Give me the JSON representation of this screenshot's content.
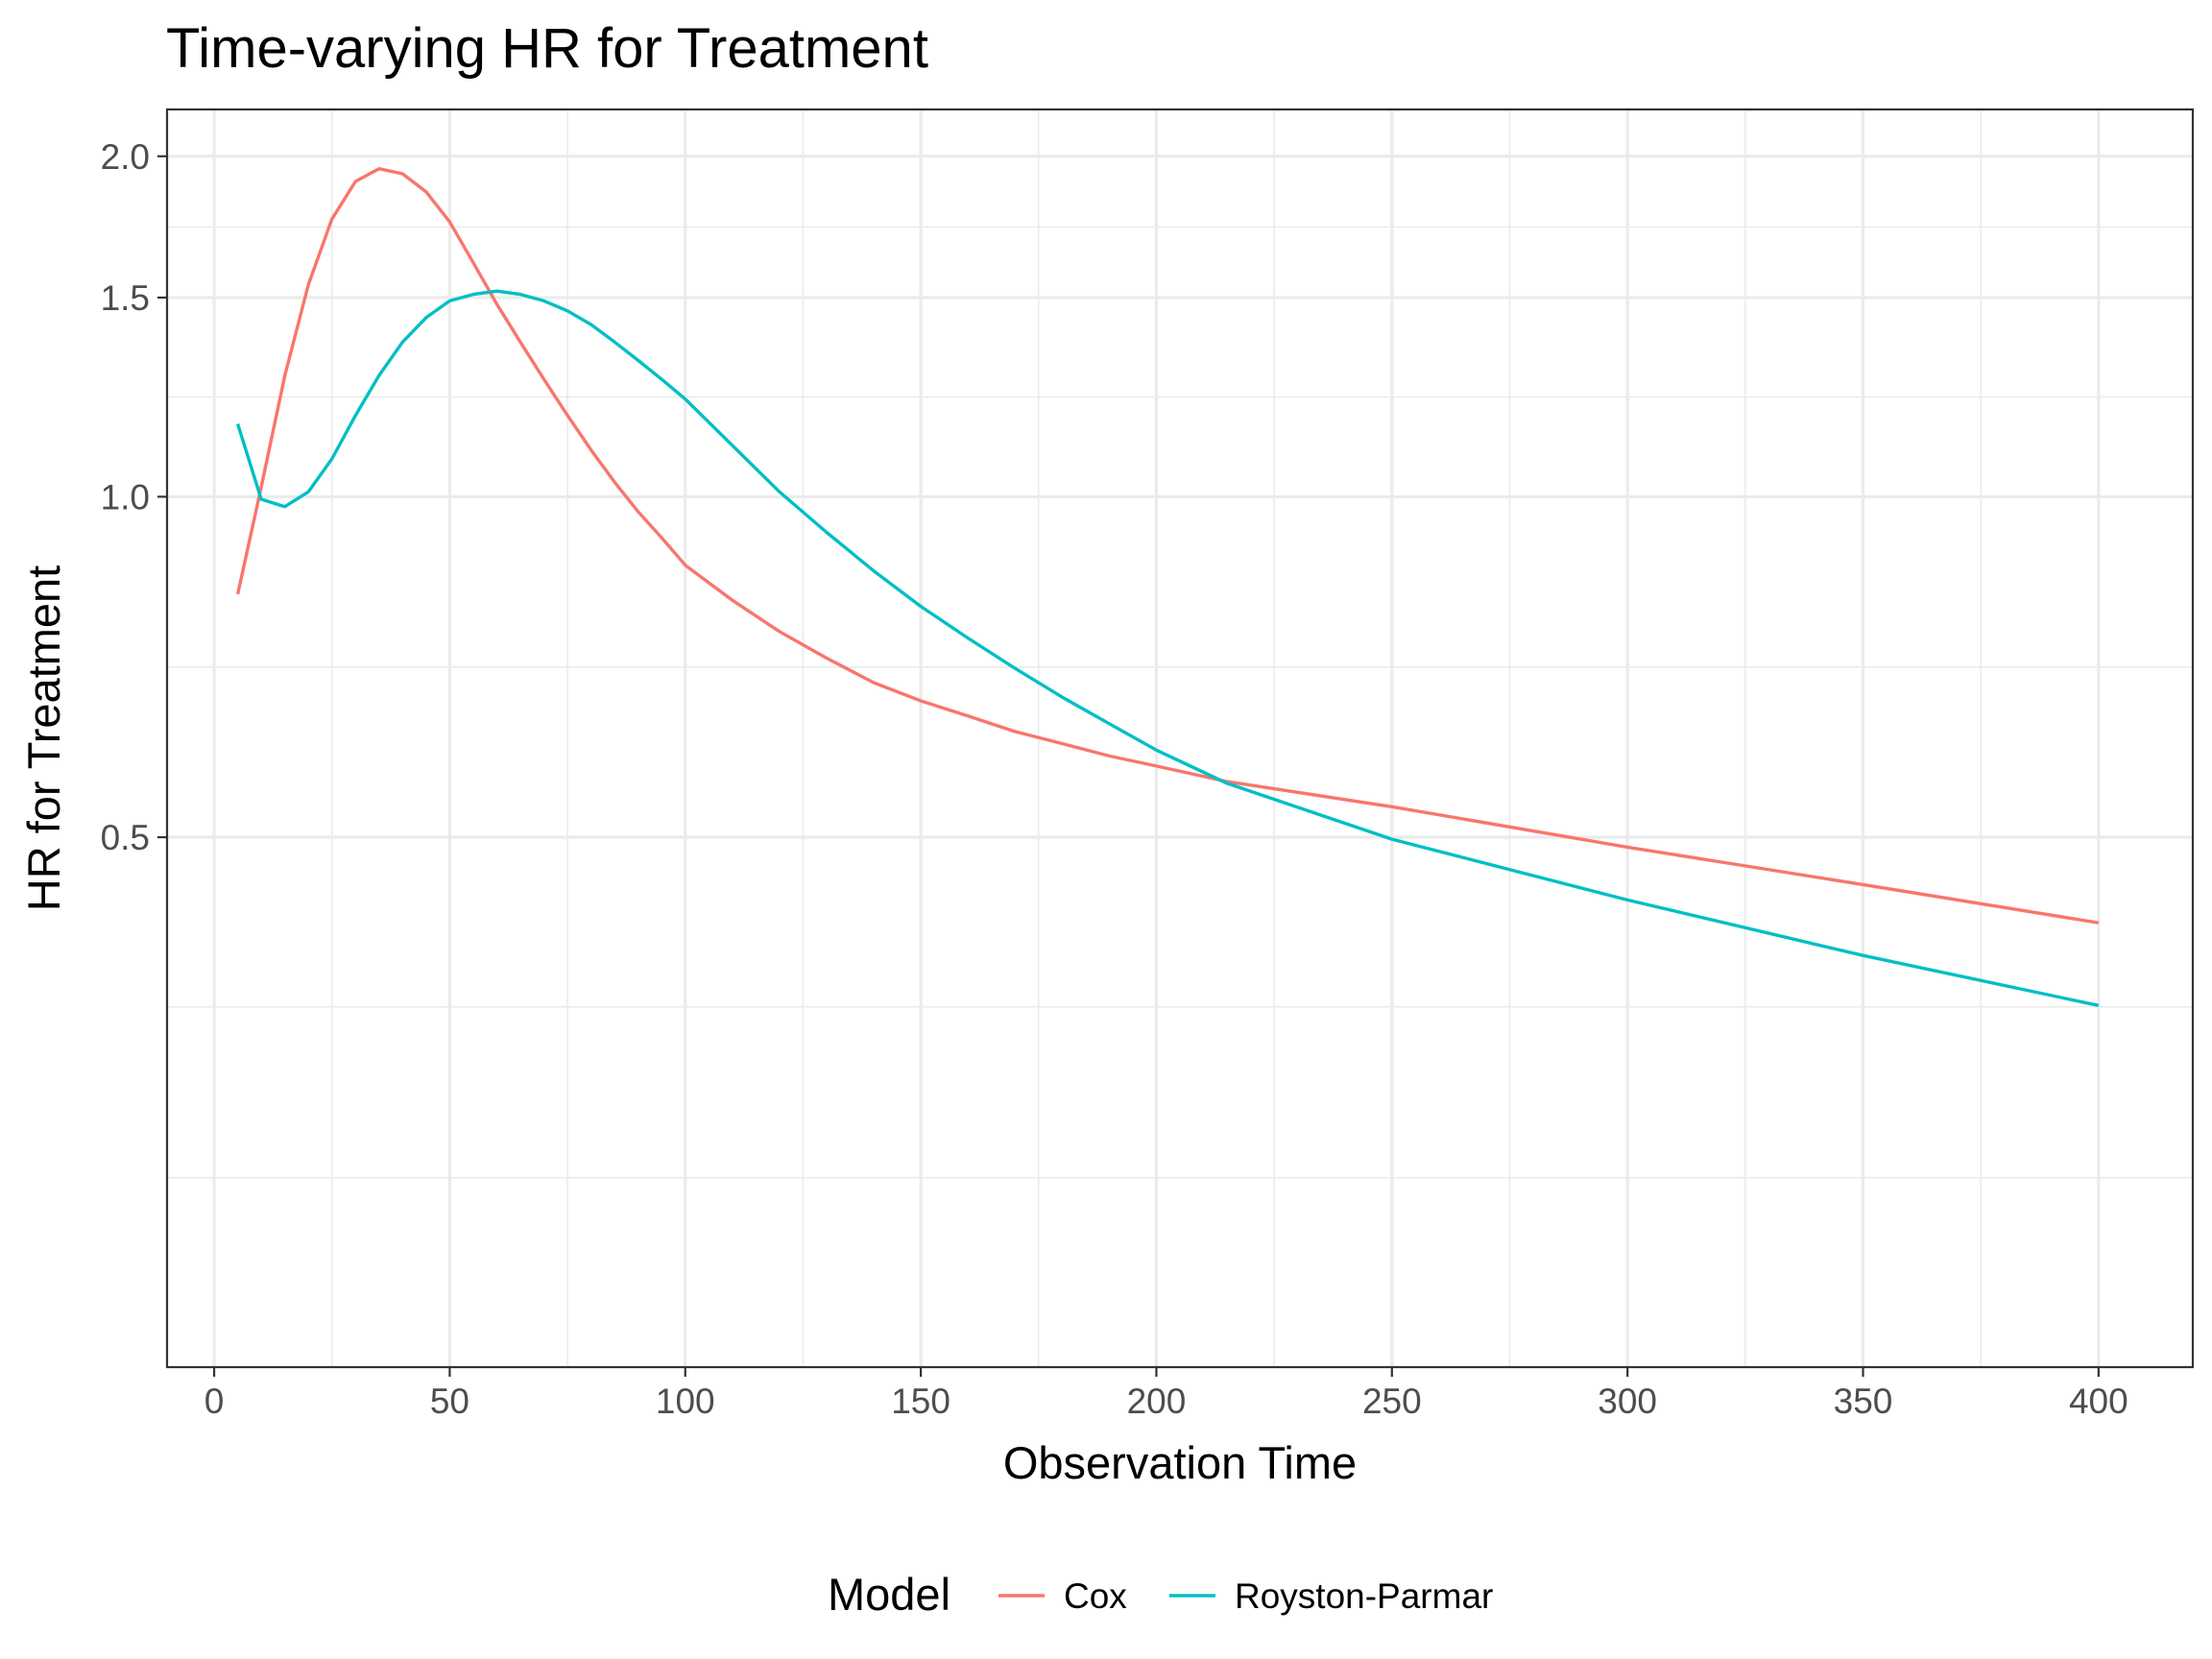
{
  "chart_data": {
    "type": "line",
    "title": "Time-varying HR for Treatment",
    "xlabel": "Observation Time",
    "ylabel": "HR for Treatment",
    "y_scale": "log",
    "xlim": [
      -10,
      420
    ],
    "ylim": [
      0.17,
      2.2
    ],
    "x_ticks": [
      0,
      50,
      100,
      150,
      200,
      250,
      300,
      350,
      400
    ],
    "x_tick_labels": [
      "0",
      "50",
      "100",
      "150",
      "200",
      "250",
      "300",
      "350",
      "400"
    ],
    "y_ticks": [
      0.5,
      1.0,
      1.5,
      2.0
    ],
    "y_tick_labels": [
      "0.5",
      "1.0",
      "1.5",
      "2.0"
    ],
    "y_minor_ticks": [
      0.25,
      0.354,
      0.707,
      1.225,
      1.732
    ],
    "grid": true,
    "legend_position": "bottom",
    "legend_title": "Model",
    "series": [
      {
        "name": "Cox",
        "color": "#F8766D",
        "x": [
          5,
          10,
          15,
          20,
          25,
          30,
          35,
          40,
          45,
          50,
          55,
          60,
          65,
          70,
          75,
          80,
          85,
          90,
          95,
          100,
          110,
          120,
          130,
          140,
          150,
          160,
          170,
          180,
          190,
          200,
          215,
          250,
          300,
          350,
          400
        ],
        "y": [
          0.82,
          1.02,
          1.28,
          1.54,
          1.76,
          1.9,
          1.95,
          1.93,
          1.86,
          1.75,
          1.61,
          1.48,
          1.37,
          1.27,
          1.18,
          1.1,
          1.03,
          0.97,
          0.92,
          0.87,
          0.81,
          0.76,
          0.72,
          0.685,
          0.66,
          0.64,
          0.62,
          0.605,
          0.59,
          0.578,
          0.56,
          0.532,
          0.49,
          0.454,
          0.42
        ]
      },
      {
        "name": "Royston-Parmar",
        "color": "#00BFC4",
        "x": [
          5,
          10,
          15,
          20,
          25,
          30,
          35,
          40,
          45,
          50,
          55,
          60,
          65,
          70,
          75,
          80,
          85,
          90,
          95,
          100,
          110,
          120,
          130,
          140,
          150,
          160,
          170,
          180,
          190,
          200,
          215,
          250,
          300,
          350,
          400
        ],
        "y": [
          1.16,
          0.995,
          0.98,
          1.01,
          1.08,
          1.18,
          1.28,
          1.37,
          1.44,
          1.49,
          1.51,
          1.52,
          1.51,
          1.49,
          1.46,
          1.42,
          1.37,
          1.32,
          1.27,
          1.22,
          1.11,
          1.01,
          0.93,
          0.86,
          0.8,
          0.75,
          0.705,
          0.665,
          0.63,
          0.597,
          0.558,
          0.498,
          0.44,
          0.393,
          0.355
        ]
      }
    ]
  }
}
